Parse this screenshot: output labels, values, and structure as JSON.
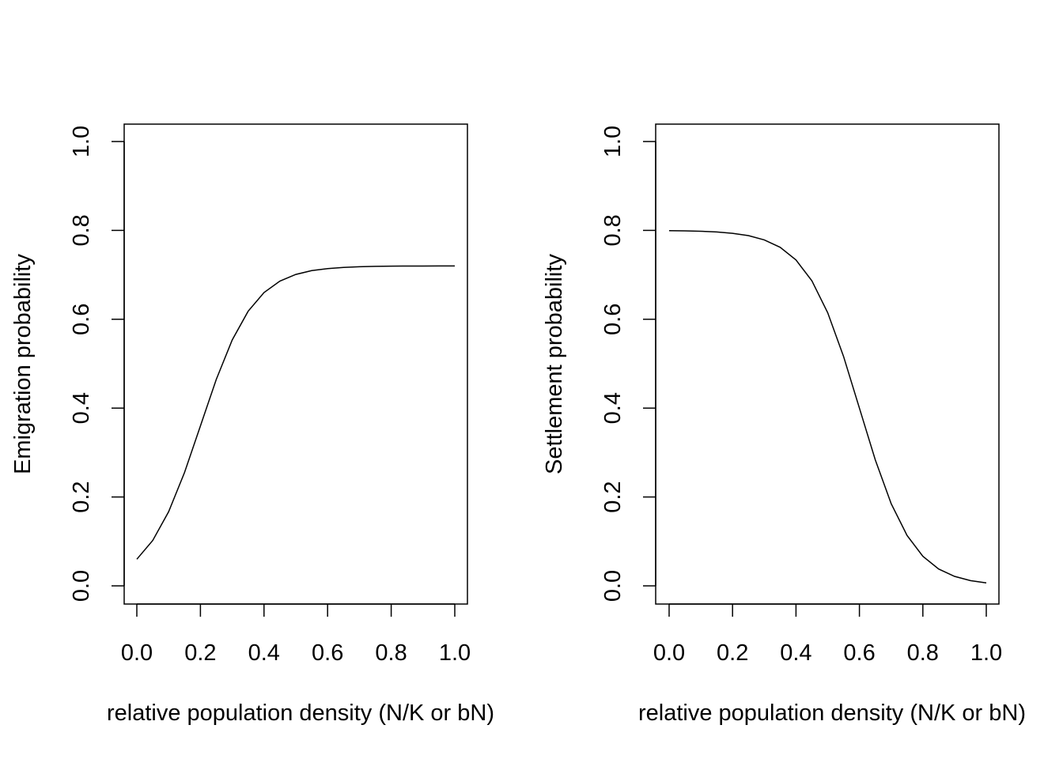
{
  "chart_data": [
    {
      "type": "line",
      "title": "",
      "xlabel": "relative population density (N/K or bN)",
      "ylabel": "Emigration probability",
      "xlim": [
        0,
        1
      ],
      "ylim": [
        0,
        1
      ],
      "xticks": [
        "0.0",
        "0.2",
        "0.4",
        "0.6",
        "0.8",
        "1.0"
      ],
      "yticks": [
        "0.0",
        "0.2",
        "0.4",
        "0.6",
        "0.8",
        "1.0"
      ],
      "grid": false,
      "series": [
        {
          "name": "emigration",
          "color": "#000000",
          "x": [
            0,
            0.05,
            0.1,
            0.15,
            0.2,
            0.25,
            0.3,
            0.35,
            0.4,
            0.45,
            0.5,
            0.55,
            0.6,
            0.65,
            0.7,
            0.75,
            0.8,
            0.85,
            0.9,
            0.95,
            1.0
          ],
          "y": [
            0.0599,
            0.1021,
            0.1667,
            0.2551,
            0.36,
            0.4649,
            0.5533,
            0.6179,
            0.6601,
            0.6859,
            0.7009,
            0.7094,
            0.7141,
            0.7168,
            0.7182,
            0.719,
            0.7195,
            0.7197,
            0.7198,
            0.7199,
            0.7199
          ]
        }
      ]
    },
    {
      "type": "line",
      "title": "",
      "xlabel": "relative population density (N/K or bN)",
      "ylabel": "Settlement probability",
      "xlim": [
        0,
        1
      ],
      "ylim": [
        0,
        1
      ],
      "xticks": [
        "0.0",
        "0.2",
        "0.4",
        "0.6",
        "0.8",
        "1.0"
      ],
      "yticks": [
        "0.0",
        "0.2",
        "0.4",
        "0.6",
        "0.8",
        "1.0"
      ],
      "grid": false,
      "series": [
        {
          "name": "settlement",
          "color": "#000000",
          "x": [
            0,
            0.05,
            0.1,
            0.15,
            0.2,
            0.25,
            0.3,
            0.35,
            0.4,
            0.45,
            0.5,
            0.55,
            0.6,
            0.65,
            0.7,
            0.75,
            0.8,
            0.85,
            0.9,
            0.95,
            1.0
          ],
          "y": [
            0.7994,
            0.7989,
            0.798,
            0.7964,
            0.7935,
            0.7882,
            0.7787,
            0.762,
            0.7335,
            0.6865,
            0.6148,
            0.5165,
            0.4,
            0.2835,
            0.1852,
            0.1135,
            0.0666,
            0.0379,
            0.0213,
            0.0118,
            0.0065
          ]
        }
      ]
    }
  ]
}
